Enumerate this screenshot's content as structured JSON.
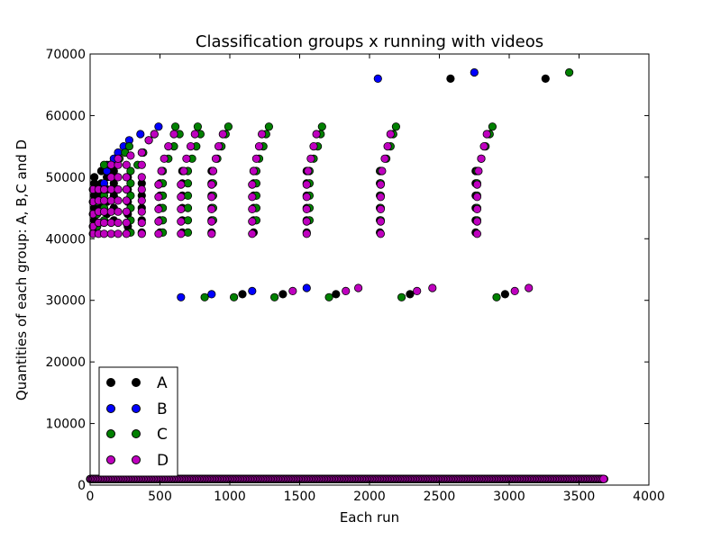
{
  "chart_data": {
    "type": "scatter",
    "title": "Classification groups x running with videos",
    "xlabel": "Each run",
    "ylabel": "Quantities of each group: A, B,C and D",
    "xlim": [
      0,
      4000
    ],
    "ylim": [
      0,
      70000
    ],
    "xticks": [
      "0",
      "500",
      "1000",
      "1500",
      "2000",
      "2500",
      "3000",
      "3500",
      "4000"
    ],
    "yticks": [
      "0",
      "10000",
      "20000",
      "30000",
      "40000",
      "50000",
      "60000",
      "70000"
    ],
    "grid": false,
    "legend": {
      "placement": "lower-left",
      "entries": [
        "A",
        "B",
        "C",
        "D"
      ]
    },
    "series": [
      {
        "name": "A",
        "color": "#000000",
        "points": [
          [
            30,
            41000
          ],
          [
            30,
            42000
          ],
          [
            30,
            43000
          ],
          [
            30,
            44000
          ],
          [
            30,
            45000
          ],
          [
            30,
            46000
          ],
          [
            30,
            47000
          ],
          [
            30,
            48000
          ],
          [
            30,
            49000
          ],
          [
            30,
            50000
          ],
          [
            80,
            45000
          ],
          [
            80,
            47000
          ],
          [
            80,
            49000
          ],
          [
            80,
            51000
          ],
          [
            120,
            44000
          ],
          [
            120,
            46000
          ],
          [
            120,
            48000
          ],
          [
            120,
            50000
          ],
          [
            120,
            52000
          ],
          [
            170,
            43000
          ],
          [
            170,
            45000
          ],
          [
            170,
            47000
          ],
          [
            170,
            49000
          ],
          [
            170,
            51000
          ],
          [
            270,
            41000
          ],
          [
            270,
            42000
          ],
          [
            270,
            44000
          ],
          [
            270,
            46000
          ],
          [
            270,
            48000
          ],
          [
            270,
            50000
          ],
          [
            370,
            41000
          ],
          [
            370,
            43000
          ],
          [
            370,
            45000
          ],
          [
            370,
            47000
          ],
          [
            370,
            49000
          ],
          [
            500,
            41000
          ],
          [
            500,
            43000
          ],
          [
            500,
            45000
          ],
          [
            500,
            47000
          ],
          [
            500,
            49000
          ],
          [
            660,
            41000
          ],
          [
            660,
            43000
          ],
          [
            660,
            45000
          ],
          [
            660,
            47000
          ],
          [
            660,
            49000
          ],
          [
            660,
            51000
          ],
          [
            870,
            41000
          ],
          [
            870,
            43000
          ],
          [
            870,
            45000
          ],
          [
            870,
            47000
          ],
          [
            870,
            49000
          ],
          [
            870,
            51000
          ],
          [
            1170,
            41000
          ],
          [
            1170,
            43000
          ],
          [
            1170,
            45000
          ],
          [
            1170,
            47000
          ],
          [
            1170,
            49000
          ],
          [
            1170,
            51000
          ],
          [
            1550,
            41000
          ],
          [
            1550,
            43000
          ],
          [
            1550,
            45000
          ],
          [
            1550,
            47000
          ],
          [
            1550,
            49000
          ],
          [
            1550,
            51000
          ],
          [
            2075,
            41000
          ],
          [
            2075,
            43000
          ],
          [
            2075,
            45000
          ],
          [
            2075,
            47000
          ],
          [
            2075,
            49000
          ],
          [
            2075,
            51000
          ],
          [
            2760,
            41000
          ],
          [
            2760,
            43000
          ],
          [
            2760,
            45000
          ],
          [
            2760,
            47000
          ],
          [
            2760,
            49000
          ],
          [
            2760,
            51000
          ],
          [
            1090,
            31000
          ],
          [
            1380,
            31000
          ],
          [
            1760,
            31000
          ],
          [
            2290,
            31000
          ],
          [
            2970,
            31000
          ],
          [
            2580,
            66000
          ],
          [
            3260,
            66000
          ]
        ]
      },
      {
        "name": "B",
        "color": "#0000ff",
        "points": [
          [
            80,
            48000
          ],
          [
            100,
            49000
          ],
          [
            120,
            51000
          ],
          [
            140,
            52000
          ],
          [
            170,
            53000
          ],
          [
            200,
            54000
          ],
          [
            240,
            55000
          ],
          [
            280,
            56000
          ],
          [
            360,
            57000
          ],
          [
            490,
            58200
          ],
          [
            650,
            30500
          ],
          [
            870,
            31000
          ],
          [
            1160,
            31500
          ],
          [
            1550,
            32000
          ],
          [
            2060,
            66000
          ],
          [
            2750,
            67000
          ]
        ]
      },
      {
        "name": "C",
        "color": "#008000",
        "points": [
          [
            50,
            42000
          ],
          [
            50,
            44000
          ],
          [
            50,
            46000
          ],
          [
            100,
            43000
          ],
          [
            100,
            45000
          ],
          [
            100,
            47000
          ],
          [
            100,
            52000
          ],
          [
            150,
            52000
          ],
          [
            210,
            53000
          ],
          [
            250,
            54000
          ],
          [
            280,
            55000
          ],
          [
            290,
            41000
          ],
          [
            290,
            43000
          ],
          [
            290,
            45000
          ],
          [
            290,
            47000
          ],
          [
            290,
            49000
          ],
          [
            290,
            51000
          ],
          [
            340,
            52000
          ],
          [
            380,
            54000
          ],
          [
            420,
            56000
          ],
          [
            460,
            57000
          ],
          [
            520,
            41000
          ],
          [
            520,
            43000
          ],
          [
            520,
            45000
          ],
          [
            520,
            47000
          ],
          [
            520,
            49000
          ],
          [
            520,
            51000
          ],
          [
            560,
            53000
          ],
          [
            600,
            55000
          ],
          [
            640,
            57000
          ],
          [
            610,
            58200
          ],
          [
            700,
            41000
          ],
          [
            700,
            43000
          ],
          [
            700,
            45000
          ],
          [
            700,
            47000
          ],
          [
            700,
            49000
          ],
          [
            700,
            51000
          ],
          [
            730,
            53000
          ],
          [
            760,
            55000
          ],
          [
            790,
            57000
          ],
          [
            770,
            58200
          ],
          [
            880,
            43000
          ],
          [
            880,
            45000
          ],
          [
            880,
            47000
          ],
          [
            880,
            49000
          ],
          [
            880,
            51000
          ],
          [
            910,
            53000
          ],
          [
            940,
            55000
          ],
          [
            970,
            57000
          ],
          [
            990,
            58200
          ],
          [
            1190,
            43000
          ],
          [
            1190,
            45000
          ],
          [
            1190,
            47000
          ],
          [
            1190,
            49000
          ],
          [
            1190,
            51000
          ],
          [
            1210,
            53000
          ],
          [
            1240,
            55000
          ],
          [
            1260,
            57000
          ],
          [
            1280,
            58200
          ],
          [
            1570,
            43000
          ],
          [
            1570,
            45000
          ],
          [
            1570,
            47000
          ],
          [
            1570,
            49000
          ],
          [
            1570,
            51000
          ],
          [
            1600,
            53000
          ],
          [
            1630,
            55000
          ],
          [
            1650,
            57000
          ],
          [
            1660,
            58200
          ],
          [
            2080,
            43000
          ],
          [
            2080,
            45000
          ],
          [
            2080,
            47000
          ],
          [
            2080,
            49000
          ],
          [
            2080,
            51000
          ],
          [
            2120,
            53000
          ],
          [
            2150,
            55000
          ],
          [
            2170,
            57000
          ],
          [
            2190,
            58200
          ],
          [
            2770,
            43000
          ],
          [
            2770,
            45000
          ],
          [
            2770,
            47000
          ],
          [
            2770,
            49000
          ],
          [
            2770,
            51000
          ],
          [
            2800,
            53000
          ],
          [
            2830,
            55000
          ],
          [
            2860,
            57000
          ],
          [
            2880,
            58200
          ],
          [
            820,
            30500
          ],
          [
            1030,
            30500
          ],
          [
            1320,
            30500
          ],
          [
            1710,
            30500
          ],
          [
            2230,
            30500
          ],
          [
            2910,
            30500
          ],
          [
            3430,
            67000
          ]
        ]
      },
      {
        "name": "D",
        "color": "#bf00bf",
        "points": [
          [
            20,
            40800
          ],
          [
            20,
            42000
          ],
          [
            20,
            44000
          ],
          [
            20,
            46000
          ],
          [
            20,
            48000
          ],
          [
            60,
            40800
          ],
          [
            60,
            42600
          ],
          [
            60,
            44400
          ],
          [
            60,
            46200
          ],
          [
            60,
            48000
          ],
          [
            100,
            40800
          ],
          [
            100,
            42600
          ],
          [
            100,
            44400
          ],
          [
            100,
            46200
          ],
          [
            100,
            48000
          ],
          [
            150,
            40800
          ],
          [
            150,
            42600
          ],
          [
            150,
            44400
          ],
          [
            150,
            46200
          ],
          [
            150,
            48000
          ],
          [
            150,
            50000
          ],
          [
            150,
            52000
          ],
          [
            200,
            40800
          ],
          [
            200,
            42600
          ],
          [
            200,
            44400
          ],
          [
            200,
            46200
          ],
          [
            200,
            48000
          ],
          [
            200,
            50000
          ],
          [
            200,
            52000
          ],
          [
            200,
            53000
          ],
          [
            260,
            40800
          ],
          [
            260,
            42600
          ],
          [
            260,
            44400
          ],
          [
            260,
            46200
          ],
          [
            260,
            48000
          ],
          [
            260,
            50000
          ],
          [
            260,
            52000
          ],
          [
            290,
            53500
          ],
          [
            370,
            40800
          ],
          [
            370,
            42600
          ],
          [
            370,
            44400
          ],
          [
            370,
            46200
          ],
          [
            370,
            48000
          ],
          [
            370,
            50000
          ],
          [
            370,
            52000
          ],
          [
            370,
            54000
          ],
          [
            420,
            56000
          ],
          [
            460,
            57000
          ],
          [
            490,
            40800
          ],
          [
            490,
            42800
          ],
          [
            490,
            44800
          ],
          [
            490,
            46800
          ],
          [
            490,
            48800
          ],
          [
            510,
            51000
          ],
          [
            530,
            53000
          ],
          [
            560,
            55000
          ],
          [
            600,
            57000
          ],
          [
            650,
            40800
          ],
          [
            650,
            42800
          ],
          [
            650,
            44800
          ],
          [
            650,
            46800
          ],
          [
            650,
            48800
          ],
          [
            670,
            51000
          ],
          [
            690,
            53000
          ],
          [
            720,
            55000
          ],
          [
            750,
            57000
          ],
          [
            870,
            40800
          ],
          [
            870,
            42800
          ],
          [
            870,
            44800
          ],
          [
            870,
            46800
          ],
          [
            870,
            48800
          ],
          [
            880,
            51000
          ],
          [
            900,
            53000
          ],
          [
            920,
            55000
          ],
          [
            950,
            57000
          ],
          [
            1160,
            40800
          ],
          [
            1160,
            42800
          ],
          [
            1160,
            44800
          ],
          [
            1160,
            46800
          ],
          [
            1160,
            48800
          ],
          [
            1170,
            51000
          ],
          [
            1190,
            53000
          ],
          [
            1210,
            55000
          ],
          [
            1230,
            57000
          ],
          [
            1550,
            40800
          ],
          [
            1550,
            42800
          ],
          [
            1550,
            44800
          ],
          [
            1550,
            46800
          ],
          [
            1550,
            48800
          ],
          [
            1560,
            51000
          ],
          [
            1580,
            53000
          ],
          [
            1600,
            55000
          ],
          [
            1620,
            57000
          ],
          [
            2080,
            40800
          ],
          [
            2080,
            42800
          ],
          [
            2080,
            44800
          ],
          [
            2080,
            46800
          ],
          [
            2080,
            48800
          ],
          [
            2090,
            51000
          ],
          [
            2110,
            53000
          ],
          [
            2130,
            55000
          ],
          [
            2150,
            57000
          ],
          [
            2770,
            40800
          ],
          [
            2770,
            42800
          ],
          [
            2770,
            44800
          ],
          [
            2770,
            46800
          ],
          [
            2770,
            48800
          ],
          [
            2780,
            51000
          ],
          [
            2800,
            53000
          ],
          [
            2820,
            55000
          ],
          [
            2840,
            57000
          ],
          [
            1450,
            31500
          ],
          [
            1830,
            31500
          ],
          [
            1920,
            32000
          ],
          [
            2340,
            31500
          ],
          [
            2450,
            32000
          ],
          [
            3040,
            31500
          ],
          [
            3140,
            32000
          ]
        ]
      }
    ],
    "baseline_band": {
      "series": [
        "A",
        "B",
        "C",
        "D"
      ],
      "x": [
        0,
        3680
      ],
      "y": 1000
    }
  }
}
